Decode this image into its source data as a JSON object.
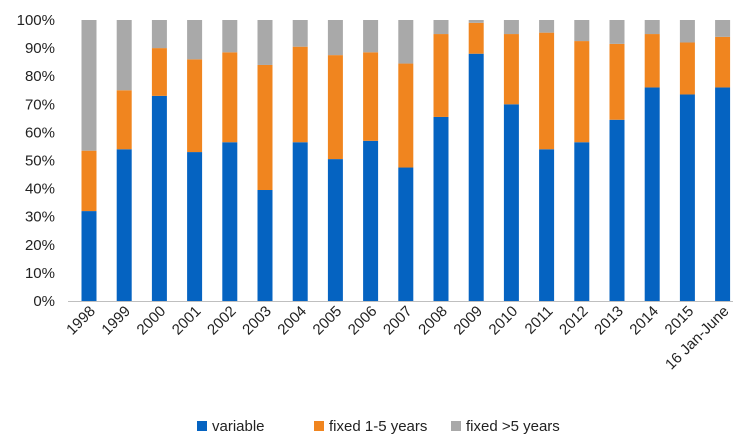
{
  "chart_data": {
    "type": "bar",
    "stacked": true,
    "percent": true,
    "title": "",
    "xlabel": "",
    "ylabel": "",
    "ylim": [
      0,
      100
    ],
    "yticks": [
      "0%",
      "10%",
      "20%",
      "30%",
      "40%",
      "50%",
      "60%",
      "70%",
      "80%",
      "90%",
      "100%"
    ],
    "grid": false,
    "legend_position": "bottom",
    "categories": [
      "1998",
      "1999",
      "2000",
      "2001",
      "2002",
      "2003",
      "2004",
      "2005",
      "2006",
      "2007",
      "2008",
      "2009",
      "2010",
      "2011",
      "2012",
      "2013",
      "2014",
      "2015",
      "16 Jan-June"
    ],
    "series": [
      {
        "name": "variable",
        "color": "#0563C1",
        "values": [
          32,
          54,
          73,
          53,
          56.5,
          39.5,
          56.5,
          50.5,
          57,
          47.5,
          65.5,
          88,
          70,
          54,
          56.5,
          64.5,
          76,
          73.5,
          76
        ]
      },
      {
        "name": "fixed 1-5 years",
        "color": "#F0851F",
        "values": [
          21.5,
          21,
          17,
          33,
          32,
          44.5,
          34,
          37,
          31.5,
          37,
          29.5,
          11,
          25,
          41.5,
          36,
          27,
          19,
          18.5,
          18
        ]
      },
      {
        "name": "fixed >5 years",
        "color": "#A9A9A9",
        "values": [
          46.5,
          25,
          10,
          14,
          11.5,
          16,
          9.5,
          12.5,
          11.5,
          15.5,
          5,
          1,
          5,
          4.5,
          7.5,
          8.5,
          5,
          8,
          6
        ]
      }
    ]
  }
}
